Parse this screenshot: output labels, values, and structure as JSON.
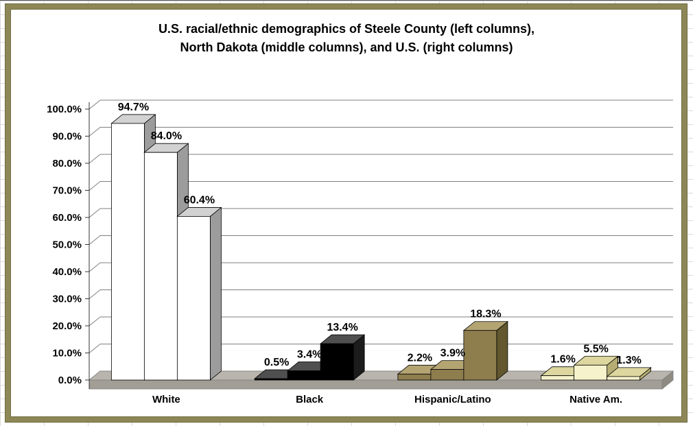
{
  "chart_data": {
    "type": "bar",
    "style": "3d-column",
    "title": "U.S. racial/ethnic demographics of Steele County (left columns), North Dakota (middle columns), and U.S. (right columns)",
    "title_lines": [
      "U.S. racial/ethnic demographics of Steele County (left columns),",
      "North Dakota (middle columns), and U.S. (right columns)"
    ],
    "categories": [
      "White",
      "Black",
      "Hispanic/Latino",
      "Native Am."
    ],
    "series": [
      {
        "name": "Steele County",
        "values": [
          94.7,
          0.5,
          2.2,
          1.6
        ]
      },
      {
        "name": "North Dakota",
        "values": [
          84.0,
          3.4,
          3.9,
          5.5
        ]
      },
      {
        "name": "U.S.",
        "values": [
          60.4,
          13.4,
          18.3,
          1.3
        ]
      }
    ],
    "labels": [
      [
        "94.7%",
        "0.5%",
        "2.2%",
        "1.6%"
      ],
      [
        "84.0%",
        "3.4%",
        "3.9%",
        "5.5%"
      ],
      [
        "60.4%",
        "13.4%",
        "18.3%",
        "1.3%"
      ]
    ],
    "y_ticks": [
      "0.0%",
      "10.0%",
      "20.0%",
      "30.0%",
      "40.0%",
      "50.0%",
      "60.0%",
      "70.0%",
      "80.0%",
      "90.0%",
      "100.0%"
    ],
    "ylim": [
      0,
      100
    ],
    "xlabel": "",
    "ylabel": "",
    "grid": true,
    "legend": "none",
    "category_colors": [
      {
        "front": "#ffffff",
        "top": "#d2d2d2",
        "side": "#9c9c9c"
      },
      {
        "front": "#000000",
        "top": "#4f4f4f",
        "side": "#1c1c1c"
      },
      {
        "front": "#8e7e4e",
        "top": "#b3a472",
        "side": "#63572f"
      },
      {
        "front": "#f6f2cc",
        "top": "#ddd79f",
        "side": "#b5ad73"
      }
    ],
    "floor_color": {
      "top": "#b9b5ad",
      "front": "#a29e96",
      "side": "#8f8b83"
    },
    "frame_color": "#8d8757",
    "gridline_color": "#7f7f7f"
  }
}
